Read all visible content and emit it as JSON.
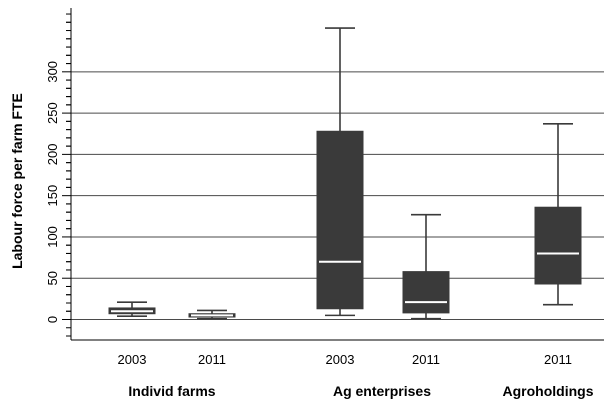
{
  "chart_data": {
    "type": "boxplot",
    "ylabel": "Labour force per farm FTE",
    "ylim": [
      -25,
      375
    ],
    "yticks": [
      0,
      50,
      100,
      150,
      200,
      250,
      300
    ],
    "grid": true,
    "groups": [
      {
        "label": "Individ farms",
        "boxes": [
          0,
          1
        ]
      },
      {
        "label": "Ag enterprises",
        "boxes": [
          2,
          3
        ]
      },
      {
        "label": "Agroholdings",
        "boxes": [
          4
        ]
      }
    ],
    "boxes": [
      {
        "group": "Individ farms",
        "label": "2003",
        "min": 4,
        "q1": 7,
        "median": 10,
        "q3": 14,
        "max": 21
      },
      {
        "group": "Individ farms",
        "label": "2011",
        "min": 1,
        "q1": 3,
        "median": 5,
        "q3": 7,
        "max": 11
      },
      {
        "group": "Ag enterprises",
        "label": "2003",
        "min": 5,
        "q1": 13,
        "median": 70,
        "q3": 228,
        "max": 353
      },
      {
        "group": "Ag enterprises",
        "label": "2011",
        "min": 1,
        "q1": 8,
        "median": 21,
        "q3": 58,
        "max": 127
      },
      {
        "group": "Agroholdings",
        "label": "2011",
        "min": 18,
        "q1": 43,
        "median": 80,
        "q3": 136,
        "max": 237
      }
    ],
    "colors": {
      "box": "#3a3a3a",
      "median": "#ffffff",
      "grid": "#4a4a4a",
      "axis": "#000000"
    }
  }
}
